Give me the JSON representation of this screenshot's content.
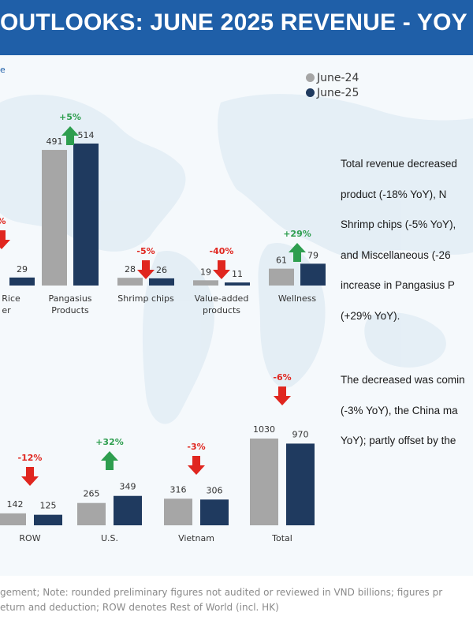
{
  "title": "OUTLOOKS: JUNE 2025 REVENUE - YOY",
  "corner_mark": "e",
  "colors": {
    "june24": "#a6a6a6",
    "june25": "#1f3a5f",
    "up": "#2e9e4f",
    "down": "#e0261f",
    "title_bg": "#1f5fa8"
  },
  "legend": [
    {
      "label": "June-24",
      "color": "#a6a6a6"
    },
    {
      "label": "June-25",
      "color": "#1f3a5f"
    }
  ],
  "chart_data": [
    {
      "type": "bar",
      "categories": [
        "& Rice\ner",
        "Pangasius\nProducts",
        "Shrimp chips",
        "Value-added\nproducts",
        "Wellness"
      ],
      "series": [
        {
          "name": "June-24",
          "values": [
            null,
            491,
            28,
            19,
            61
          ]
        },
        {
          "name": "June-25",
          "values": [
            29,
            514,
            26,
            11,
            79
          ]
        }
      ],
      "changes": [
        "%",
        "+5%",
        "-5%",
        "-40%",
        "+29%"
      ]
    },
    {
      "type": "bar",
      "categories": [
        "ROW",
        "U.S.",
        "Vietnam",
        "Total"
      ],
      "series": [
        {
          "name": "June-24",
          "values": [
            142,
            265,
            316,
            1030
          ]
        },
        {
          "name": "June-25",
          "values": [
            125,
            349,
            306,
            970
          ]
        }
      ],
      "changes": [
        "-12%",
        "+32%",
        "-3%",
        "-6%"
      ]
    }
  ],
  "text_panel": {
    "para1": [
      "Total revenue decreased",
      "product (-18% YoY), N",
      "Shrimp chips (-5% YoY),",
      "and Miscellaneous (-26",
      "increase in Pangasius P",
      "(+29% YoY)."
    ],
    "para2": [
      "The decreased was comin",
      "(-3% YoY), the China ma",
      "YoY); partly offset by the"
    ]
  },
  "footnote": [
    "gement; Note: rounded preliminary figures not audited or reviewed in VND billions; figures pr",
    "eturn and deduction; ROW denotes Rest of World (incl. HK)"
  ]
}
